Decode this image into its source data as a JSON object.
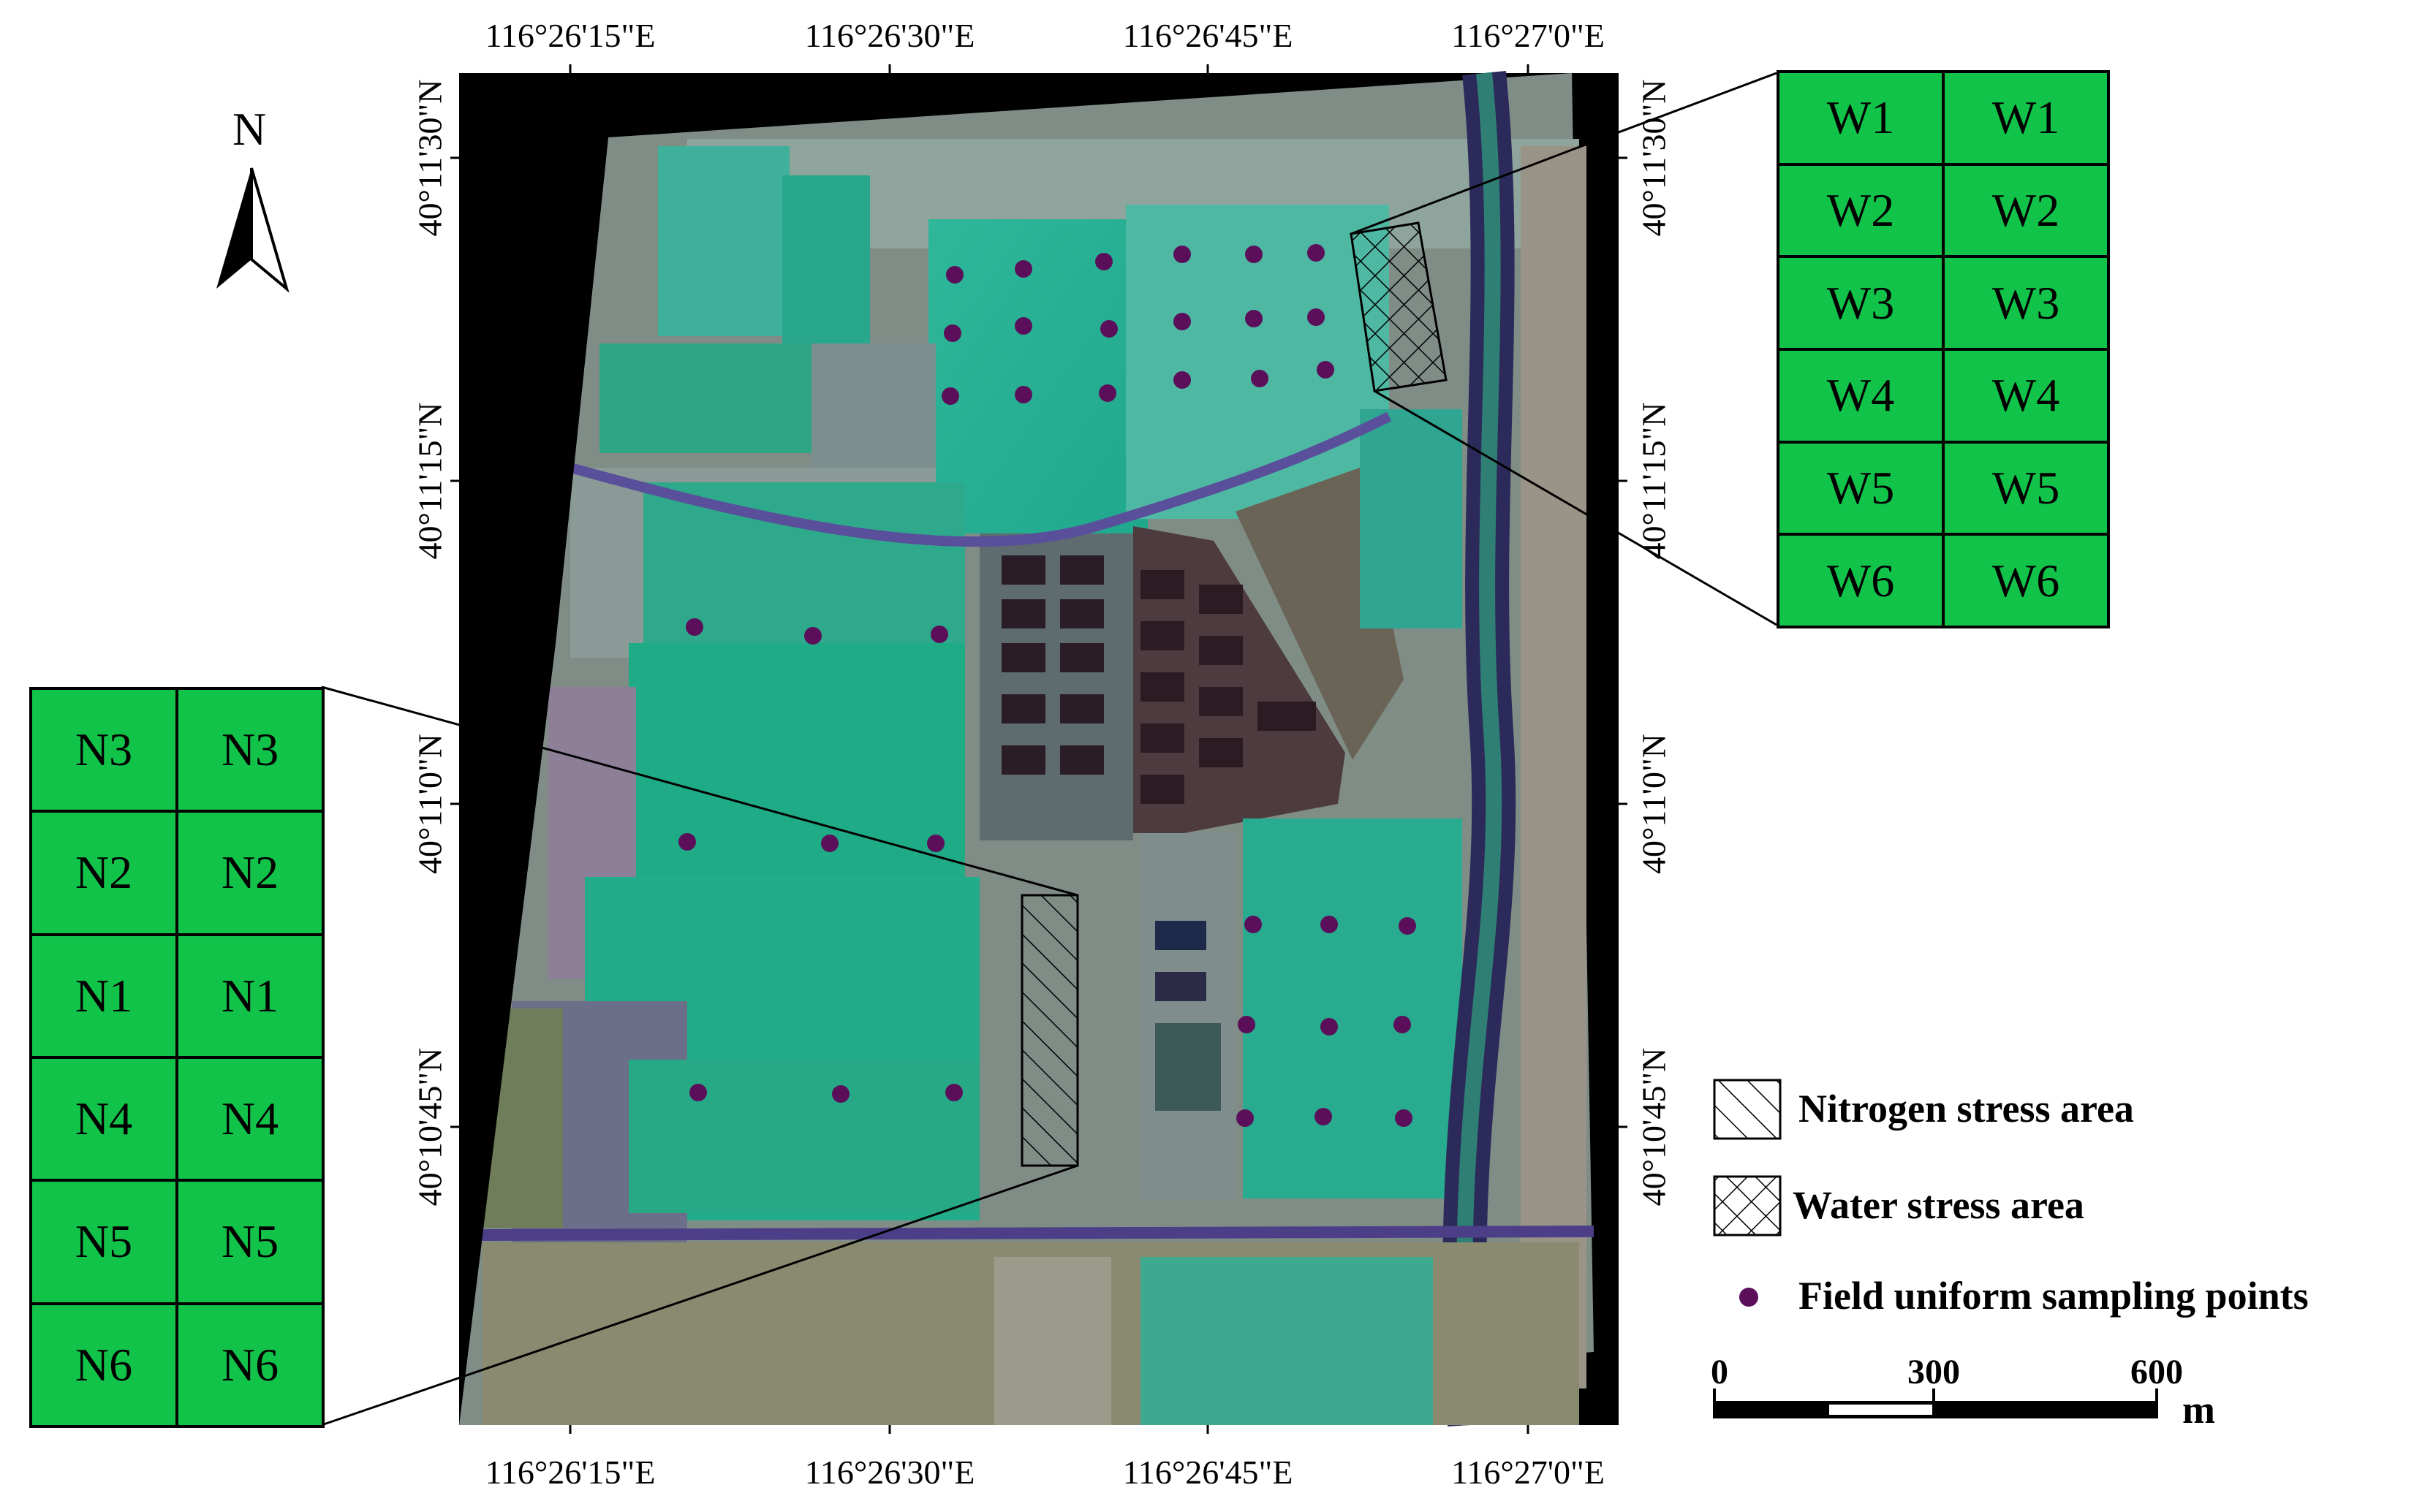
{
  "map": {
    "north_label": "N",
    "top_lon_labels": [
      "116°26'15\"E",
      "116°26'30\"E",
      "116°26'45\"E",
      "116°27'0\"E"
    ],
    "bottom_lon_labels": [
      "116°26'15\"E",
      "116°26'30\"E",
      "116°26'45\"E",
      "116°27'0\"E"
    ],
    "left_lat_labels": [
      "40°11'30\"N",
      "40°11'15\"N",
      "40°11'0\"N",
      "40°10'45\"N"
    ],
    "right_lat_labels": [
      "40°11'30\"N",
      "40°11'15\"N",
      "40°11'0\"N",
      "40°10'45\"N"
    ]
  },
  "water_plot_grid": {
    "cells": [
      "W1",
      "W1",
      "W2",
      "W2",
      "W3",
      "W3",
      "W4",
      "W4",
      "W5",
      "W5",
      "W6",
      "W6"
    ],
    "fill_color": "#12c34a"
  },
  "nitrogen_plot_grid": {
    "cells": [
      "N3",
      "N3",
      "N2",
      "N2",
      "N1",
      "N1",
      "N4",
      "N4",
      "N5",
      "N5",
      "N6",
      "N6"
    ],
    "fill_color": "#12c34a"
  },
  "legend": {
    "nitrogen": "Nitrogen stress area",
    "water": "Water stress area",
    "points": "Field uniform sampling points",
    "point_color": "#5b0f5a"
  },
  "scale_bar": {
    "labels": [
      "0",
      "300",
      "600"
    ],
    "unit": "m"
  }
}
